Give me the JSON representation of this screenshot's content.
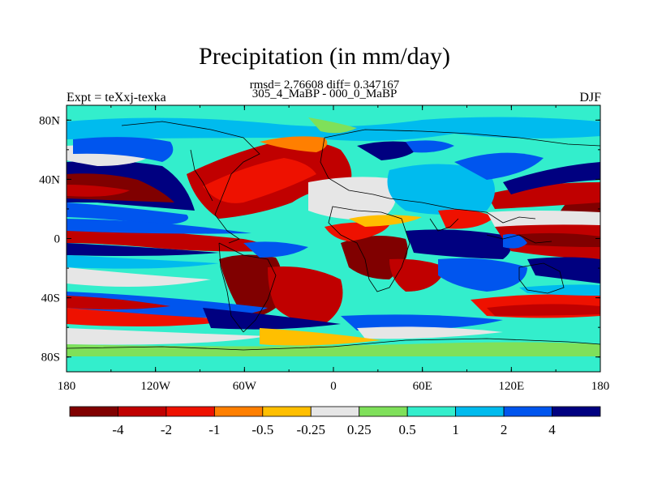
{
  "title": "Precipitation (in mm/day)",
  "stats_line": "rmsd= 2.76608 diff= 0.347167",
  "periods_line": "305_4_MaBP - 000_0_MaBP",
  "left_string": "Expt = teXxj-texka",
  "right_string": "DJF",
  "lat_labels": [
    "80N",
    "40N",
    "0",
    "40S",
    "80S"
  ],
  "lon_labels": [
    "180",
    "120W",
    "60W",
    "0",
    "60E",
    "120E",
    "180"
  ],
  "colorbar": {
    "colors": [
      "#800000",
      "#c00000",
      "#ee1100",
      "#ff7f00",
      "#ffbf00",
      "#e6e6e6",
      "#7fe05a",
      "#33eecc",
      "#00bbee",
      "#0055ee",
      "#000080"
    ],
    "labels": [
      "-4",
      "-2",
      "-1",
      "-0.5",
      "-0.25",
      "0.25",
      "0.5",
      "1",
      "2",
      "4"
    ]
  }
}
